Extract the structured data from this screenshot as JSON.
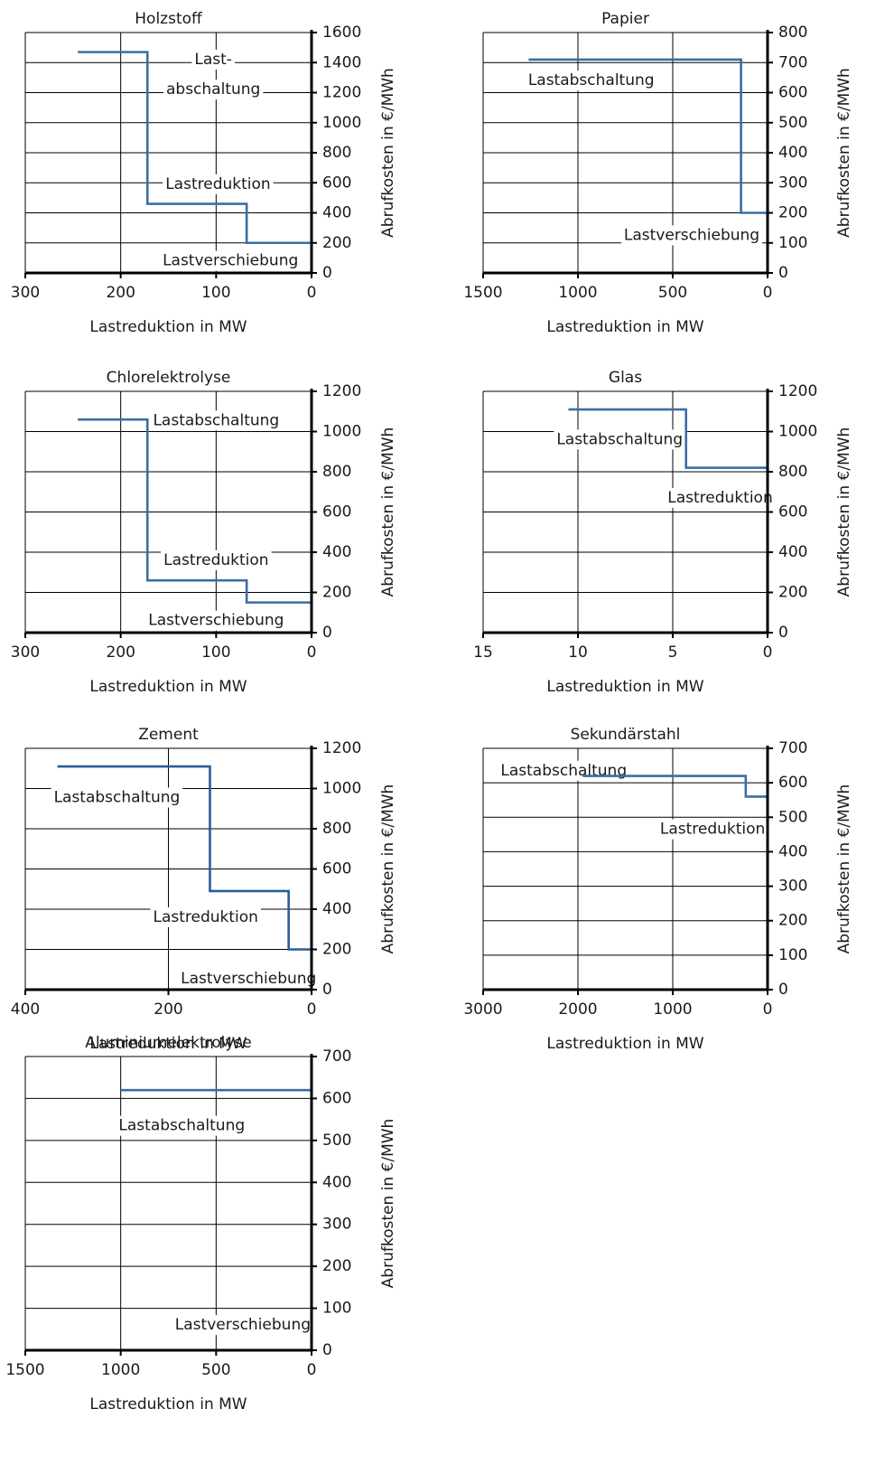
{
  "chart_data": [
    {
      "type": "line",
      "title": "Holzstoff",
      "xlabel": "Lastreduktion in MW",
      "ylabel": "Abrufkosten in €/MWh",
      "xlim": [
        300,
        0
      ],
      "ylim": [
        0,
        1600
      ],
      "xticks": [
        300,
        200,
        100,
        0
      ],
      "yticks": [
        0,
        200,
        400,
        600,
        800,
        1000,
        1200,
        1400,
        1600
      ],
      "series": [
        {
          "color": "#3a6ea5",
          "x": [
            0,
            68,
            68,
            172,
            172,
            245
          ],
          "y": [
            200,
            200,
            460,
            460,
            1470,
            1470
          ]
        }
      ],
      "annotations": [
        {
          "text": "Last-",
          "x": 103,
          "y": 1420
        },
        {
          "text": "abschaltung",
          "x": 103,
          "y": 1220
        },
        {
          "text": "Lastreduktion",
          "x": 98,
          "y": 590
        },
        {
          "text": "Lastverschiebung",
          "x": 85,
          "y": 80
        }
      ]
    },
    {
      "type": "line",
      "title": "Papier",
      "xlabel": "Lastreduktion in MW",
      "ylabel": "Abrufkosten in €/MWh",
      "xlim": [
        1500,
        0
      ],
      "ylim": [
        0,
        800
      ],
      "xticks": [
        1500,
        1000,
        500,
        0
      ],
      "yticks": [
        0,
        100,
        200,
        300,
        400,
        500,
        600,
        700,
        800
      ],
      "series": [
        {
          "color": "#3a6ea5",
          "x": [
            0,
            140,
            140,
            1260
          ],
          "y": [
            200,
            200,
            710,
            710
          ]
        }
      ],
      "annotations": [
        {
          "text": "Lastabschaltung",
          "x": 930,
          "y": 640
        },
        {
          "text": "Lastverschiebung",
          "x": 400,
          "y": 125
        }
      ]
    },
    {
      "type": "line",
      "title": "Chlorelektrolyse",
      "xlabel": "Lastreduktion in MW",
      "ylabel": "Abrufkosten in €/MWh",
      "xlim": [
        300,
        0
      ],
      "ylim": [
        0,
        1200
      ],
      "xticks": [
        300,
        200,
        100,
        0
      ],
      "yticks": [
        0,
        200,
        400,
        600,
        800,
        1000,
        1200
      ],
      "series": [
        {
          "color": "#3a6ea5",
          "x": [
            0,
            68,
            68,
            172,
            172,
            245
          ],
          "y": [
            150,
            150,
            260,
            260,
            1060,
            1060
          ]
        }
      ],
      "annotations": [
        {
          "text": "Lastabschaltung",
          "x": 100,
          "y": 1055
        },
        {
          "text": "Lastreduktion",
          "x": 100,
          "y": 360
        },
        {
          "text": "Lastverschiebung",
          "x": 100,
          "y": 60
        }
      ]
    },
    {
      "type": "line",
      "title": "Glas",
      "xlabel": "Lastreduktion in MW",
      "ylabel": "Abrufkosten in €/MWh",
      "xlim": [
        15,
        0
      ],
      "ylim": [
        0,
        1200
      ],
      "xticks": [
        15,
        10,
        5,
        0
      ],
      "yticks": [
        0,
        200,
        400,
        600,
        800,
        1000,
        1200
      ],
      "series": [
        {
          "color": "#3a6ea5",
          "x": [
            0,
            0,
            4.3,
            4.3,
            10.5
          ],
          "y": [
            0,
            820,
            820,
            1110,
            1110
          ]
        }
      ],
      "annotations": [
        {
          "text": "Lastabschaltung",
          "x": 7.8,
          "y": 960
        },
        {
          "text": "Lastreduktion",
          "x": 2.5,
          "y": 670
        }
      ]
    },
    {
      "type": "line",
      "title": "Zement",
      "xlabel": "Lastreduktion in MW",
      "ylabel": "Abrufkosten in €/MWh",
      "xlim": [
        400,
        0
      ],
      "ylim": [
        0,
        1200
      ],
      "xticks": [
        400,
        200,
        0
      ],
      "yticks": [
        0,
        200,
        400,
        600,
        800,
        1000,
        1200
      ],
      "series": [
        {
          "color": "#2b5d94",
          "x": [
            0,
            32,
            32,
            142,
            142,
            355
          ],
          "y": [
            200,
            200,
            490,
            490,
            1110,
            1110
          ]
        }
      ],
      "annotations": [
        {
          "text": "Lastabschaltung",
          "x": 272,
          "y": 955
        },
        {
          "text": "Lastreduktion",
          "x": 148,
          "y": 360
        },
        {
          "text": "Lastverschiebung",
          "x": 88,
          "y": 55
        }
      ]
    },
    {
      "type": "line",
      "title": "Sekundärstahl",
      "xlabel": "Lastreduktion in MW",
      "ylabel": "Abrufkosten in €/MWh",
      "xlim": [
        3000,
        0
      ],
      "ylim": [
        0,
        700
      ],
      "xticks": [
        3000,
        2000,
        1000,
        0
      ],
      "yticks": [
        0,
        100,
        200,
        300,
        400,
        500,
        600,
        700
      ],
      "series": [
        {
          "color": "#3a6ea5",
          "x": [
            0,
            0,
            230,
            230,
            1950
          ],
          "y": [
            290,
            560,
            560,
            620,
            620
          ]
        }
      ],
      "annotations": [
        {
          "text": "Lastabschaltung",
          "x": 2150,
          "y": 635
        },
        {
          "text": "Lastreduktion",
          "x": 580,
          "y": 465
        }
      ]
    },
    {
      "type": "line",
      "title": "Aluminiumelektrolyse",
      "xlabel": "Lastreduktion in MW",
      "ylabel": "Abrufkosten in €/MWh",
      "xlim": [
        1500,
        0
      ],
      "ylim": [
        0,
        700
      ],
      "xticks": [
        1500,
        1000,
        500,
        0
      ],
      "yticks": [
        0,
        100,
        200,
        300,
        400,
        500,
        600,
        700
      ],
      "series": [
        {
          "color": "#3a6ea5",
          "x": [
            0,
            0,
            1000
          ],
          "y": [
            115,
            620,
            620
          ]
        }
      ],
      "annotations": [
        {
          "text": "Lastabschaltung",
          "x": 680,
          "y": 535
        },
        {
          "text": "Lastverschiebung",
          "x": 360,
          "y": 60
        }
      ]
    }
  ]
}
